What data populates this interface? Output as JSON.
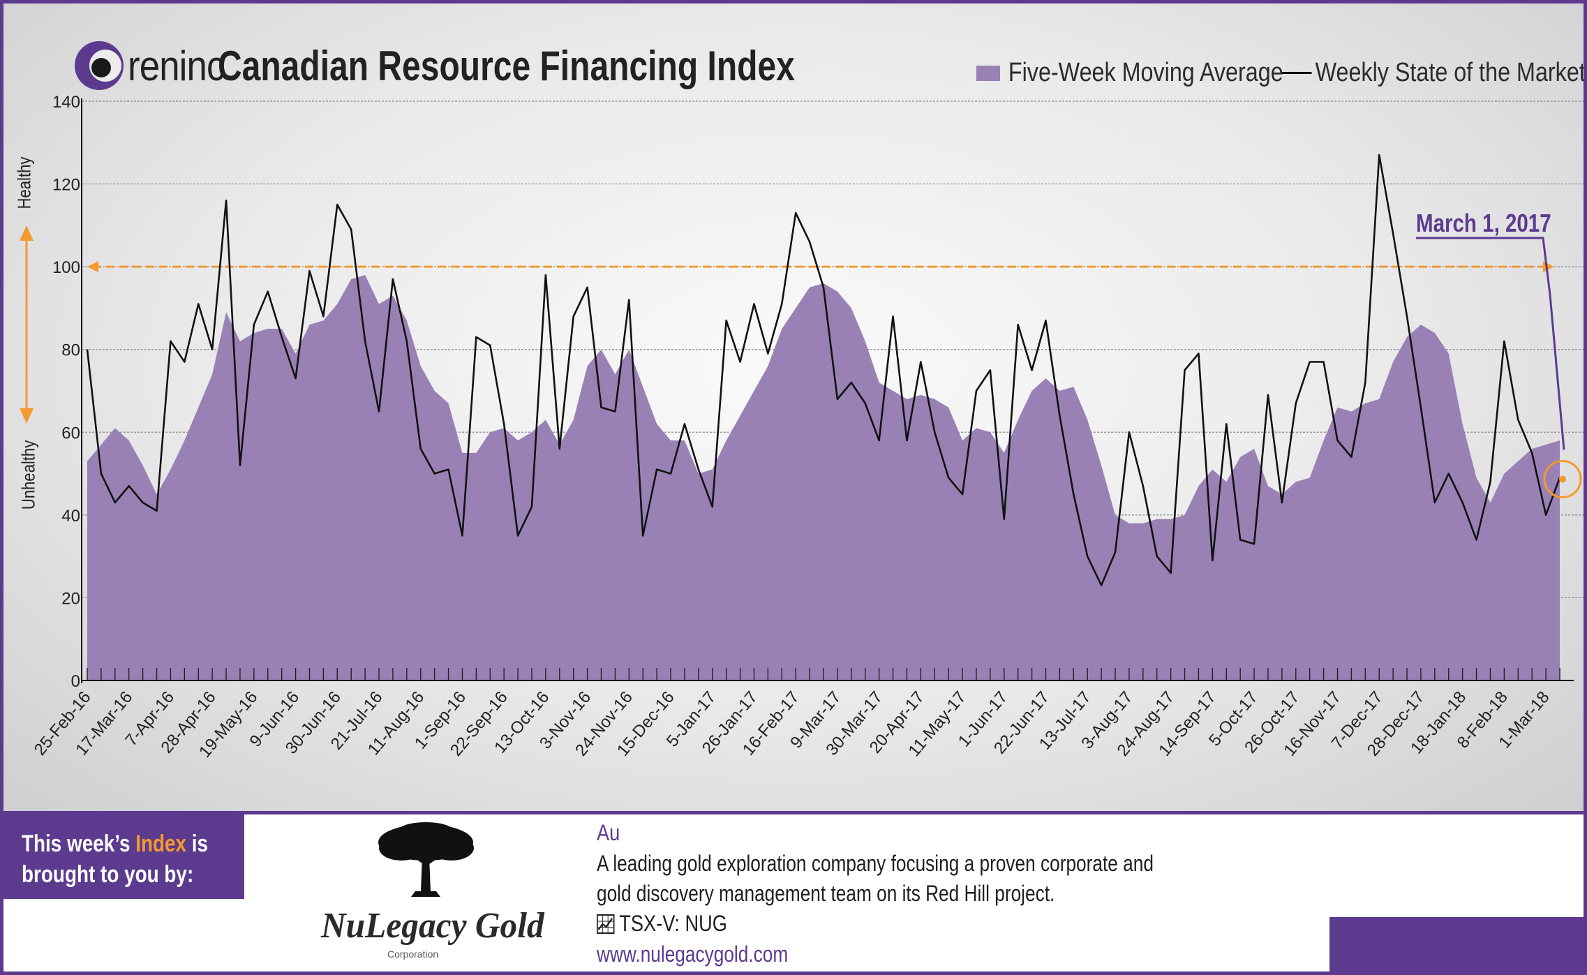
{
  "header": {
    "brand": "reninc",
    "title": "Canadian Resource Financing Index"
  },
  "legend": {
    "moving_average": "Five-Week Moving Average",
    "weekly": "Weekly State of the Market"
  },
  "side_labels": {
    "healthy": "Healthy",
    "unhealthy": "Unhealthy"
  },
  "annotation": "March 1, 2017",
  "colors": {
    "brand": "#5c3a8e",
    "area": "#9a81b5",
    "line": "#111111",
    "threshold": "#f59a2d"
  },
  "chart_data": {
    "type": "area",
    "ylim": [
      0,
      140
    ],
    "yticks": [
      0,
      20,
      40,
      60,
      80,
      100,
      120,
      140
    ],
    "threshold": 100,
    "grid": true,
    "legend_position": "top-right",
    "x_tick_labels": [
      "25-Feb-16",
      "17-Mar-16",
      "7-Apr-16",
      "28-Apr-16",
      "19-May-16",
      "9-Jun-16",
      "30-Jun-16",
      "21-Jul-16",
      "11-Aug-16",
      "1-Sep-16",
      "22-Sep-16",
      "13-Oct-16",
      "3-Nov-16",
      "24-Nov-16",
      "15-Dec-16",
      "5-Jan-17",
      "26-Jan-17",
      "16-Feb-17",
      "9-Mar-17",
      "30-Mar-17",
      "20-Apr-17",
      "11-May-17",
      "1-Jun-17",
      "22-Jun-17",
      "13-Jul-17",
      "3-Aug-17",
      "24-Aug-17",
      "14-Sep-17",
      "5-Oct-17",
      "26-Oct-17",
      "16-Nov-17",
      "7-Dec-17",
      "28-Dec-17",
      "18-Jan-18",
      "8-Feb-18",
      "1-Mar-18"
    ],
    "series": [
      {
        "name": "Five-Week Moving Average",
        "type": "area",
        "values": [
          53,
          57,
          61,
          58,
          52,
          45,
          51,
          58,
          66,
          74,
          89,
          82,
          84,
          85,
          85,
          79,
          86,
          87,
          91,
          97,
          98,
          91,
          93,
          87,
          76,
          70,
          67,
          55,
          55,
          60,
          61,
          58,
          60,
          63,
          57,
          63,
          76,
          80,
          74,
          80,
          71,
          62,
          58,
          58,
          50,
          51,
          58,
          64,
          70,
          76,
          85,
          90,
          95,
          96,
          94,
          90,
          82,
          72,
          70,
          68,
          69,
          68,
          66,
          58,
          61,
          60,
          55,
          63,
          70,
          73,
          70,
          71,
          63,
          52,
          40,
          38,
          38,
          39,
          39,
          40,
          47,
          51,
          48,
          54,
          56,
          47,
          45,
          48,
          49,
          58,
          66,
          65,
          67,
          68,
          77,
          83,
          86,
          84,
          79,
          62,
          49,
          43,
          50,
          53,
          56,
          57,
          58
        ]
      },
      {
        "name": "Weekly State of the Market",
        "type": "line",
        "values": [
          80,
          50,
          43,
          47,
          43,
          41,
          82,
          77,
          91,
          80,
          116,
          52,
          86,
          94,
          83,
          73,
          99,
          88,
          115,
          109,
          82,
          65,
          97,
          82,
          56,
          50,
          51,
          35,
          83,
          81,
          62,
          35,
          42,
          98,
          56,
          88,
          95,
          66,
          65,
          92,
          35,
          51,
          50,
          62,
          51,
          42,
          87,
          77,
          91,
          79,
          91,
          113,
          106,
          95,
          68,
          72,
          67,
          58,
          88,
          58,
          77,
          60,
          49,
          45,
          70,
          75,
          39,
          86,
          75,
          87,
          64,
          45,
          30,
          23,
          31,
          60,
          47,
          30,
          26,
          75,
          79,
          29,
          62,
          34,
          33,
          69,
          43,
          67,
          77,
          77,
          58,
          54,
          72,
          127,
          108,
          88,
          66,
          43,
          50,
          43,
          34,
          48,
          82,
          63,
          55,
          40,
          49
        ]
      }
    ]
  },
  "footer": {
    "sponsor_prefix": "This week’s ",
    "sponsor_highlight": "Index",
    "sponsor_suffix": " is brought to you by:",
    "company_name": "NuLegacy Gold",
    "company_sub": "Corporation",
    "symbol": "Au",
    "description_line1": "A leading gold exploration company focusing a proven corporate and",
    "description_line2": "gold discovery management team on its Red Hill project.",
    "ticker": "TSX-V:  NUG",
    "website": "www.nulegacygold.com"
  }
}
